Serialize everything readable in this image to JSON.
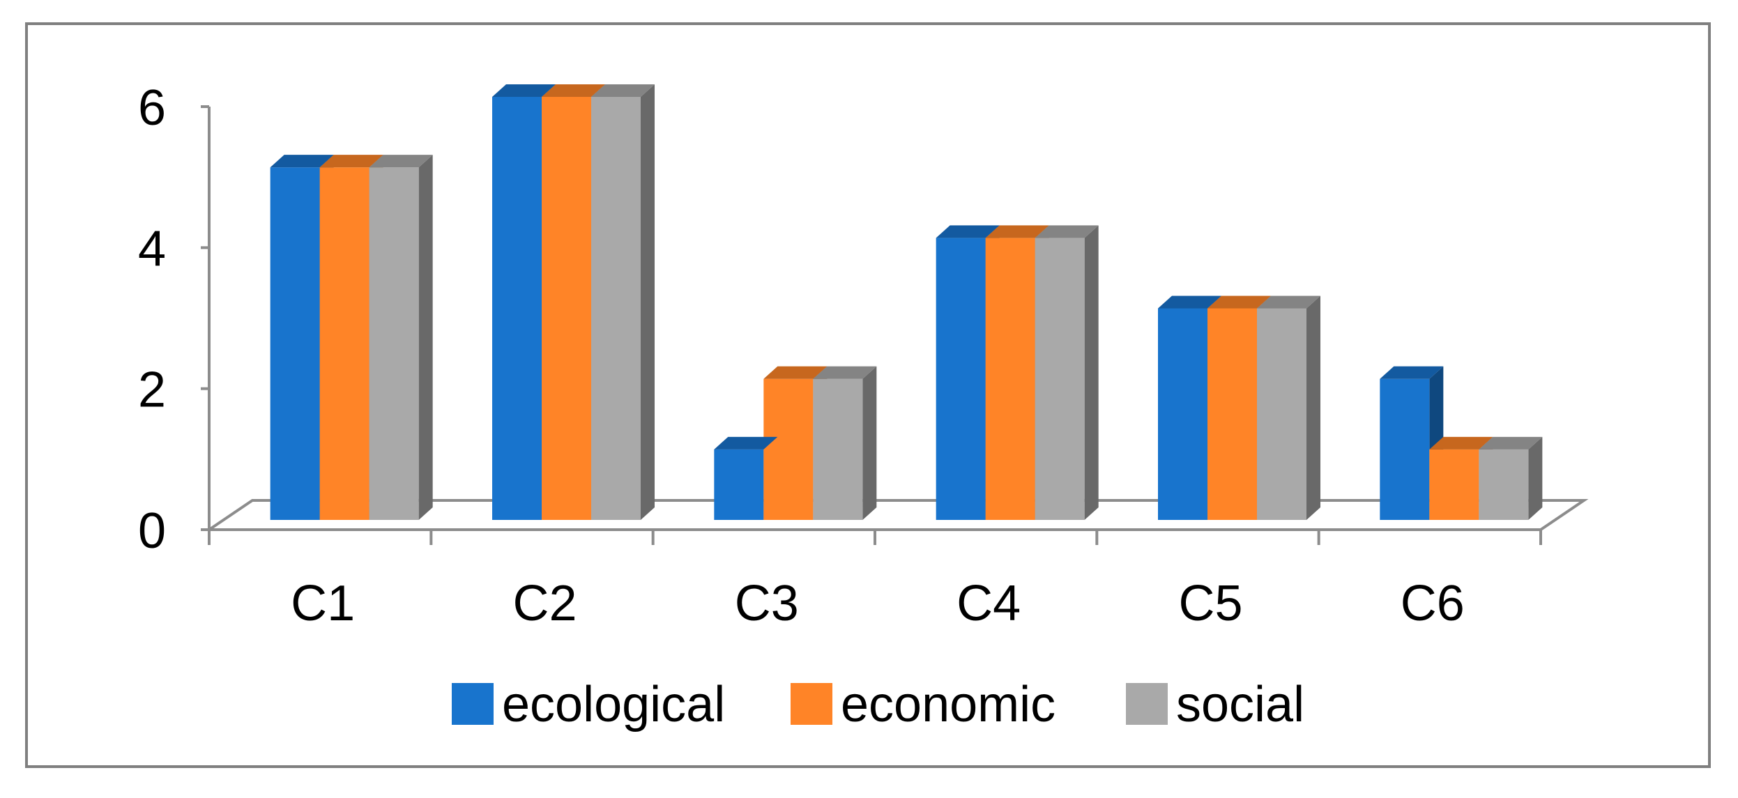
{
  "chart_data": {
    "type": "bar",
    "title": "",
    "xlabel": "",
    "ylabel": "",
    "categories": [
      "C1",
      "C2",
      "C3",
      "C4",
      "C5",
      "C6"
    ],
    "ylim": [
      0,
      6
    ],
    "yticks": [
      "0",
      "2",
      "4",
      "6"
    ],
    "yticks_values": [
      0,
      2,
      4,
      6
    ],
    "grid": false,
    "legend_position": "bottom",
    "series": [
      {
        "name": "ecological",
        "values": [
          5,
          6,
          1,
          4,
          3,
          2
        ],
        "color": "#1874CD"
      },
      {
        "name": "economic",
        "values": [
          5,
          6,
          2,
          4,
          3,
          1
        ],
        "color": "#FF8427"
      },
      {
        "name": "social",
        "values": [
          5,
          6,
          2,
          4,
          3,
          1
        ],
        "color": "#A9A9A9"
      }
    ]
  }
}
